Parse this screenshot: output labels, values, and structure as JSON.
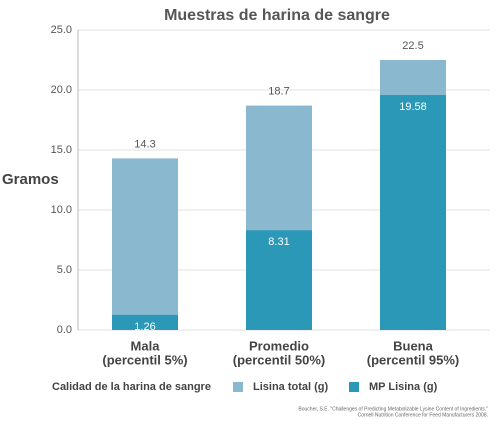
{
  "chart_data": {
    "type": "bar",
    "barmode": "overlay",
    "title": "Muestras de harina de sangre",
    "y_label": "Gramos",
    "x_label": "Calidad de la harina de sangre",
    "categories": [
      [
        "Mala",
        "(percentil 5%)"
      ],
      [
        "Promedio",
        "(percentil 50%)"
      ],
      [
        "Buena",
        "(percentil 95%)"
      ]
    ],
    "series": [
      {
        "name": "Lisina total (g)",
        "color": "#8ab8cf",
        "values": [
          14.3,
          18.7,
          22.5
        ]
      },
      {
        "name": "MP Lisina (g)",
        "color": "#2a98b6",
        "values": [
          1.26,
          8.31,
          19.58
        ]
      }
    ],
    "ylim": [
      0,
      25
    ],
    "yticks": [
      {
        "value": 0,
        "label": "0.0"
      },
      {
        "value": 5,
        "label": "5.0"
      },
      {
        "value": 10,
        "label": "10.0"
      },
      {
        "value": 15,
        "label": "15.0"
      },
      {
        "value": 20,
        "label": "20.0"
      },
      {
        "value": 25,
        "label": "25.0"
      }
    ],
    "grid": true,
    "source": [
      "Boucher, S.E. \"Challenges of Predicting Metabolizable Lysine Content of Ingredients.\"",
      "Cornell Nutrition Conference for Feed Manufacturers 2008."
    ]
  }
}
